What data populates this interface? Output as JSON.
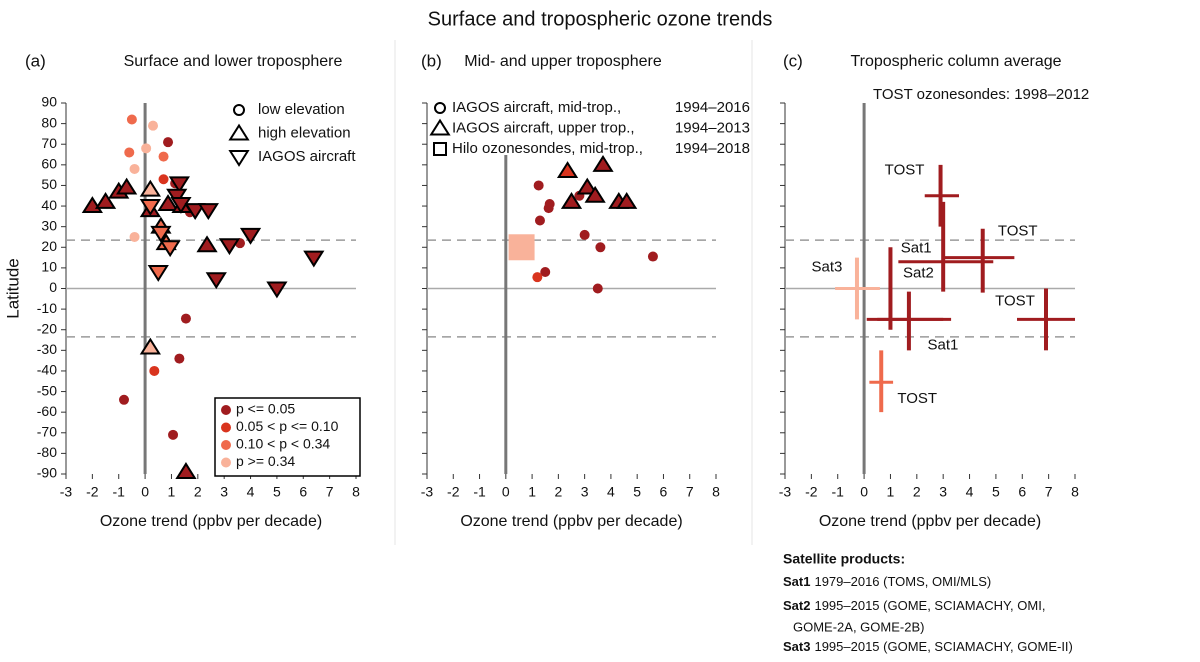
{
  "title": "Surface and tropospheric ozone trends",
  "chart_data": [
    {
      "type": "scatter",
      "panel_label": "(a)",
      "title": "Surface and lower troposphere",
      "xlabel": "Ozone trend (ppbv per decade)",
      "ylabel": "Latitude",
      "xlim": [
        -3,
        8
      ],
      "xticks": [
        -3,
        -2,
        -1,
        0,
        1,
        2,
        3,
        4,
        5,
        6,
        7,
        8
      ],
      "ylim": [
        -90,
        90
      ],
      "yticks": [
        -90,
        -80,
        -70,
        -60,
        -50,
        -40,
        -30,
        -20,
        -10,
        0,
        10,
        20,
        30,
        40,
        50,
        60,
        70,
        80,
        90
      ],
      "show_ytick_labels": true,
      "dashed_hlines": [
        23.5,
        -23.5
      ],
      "hline": 0,
      "vline": 0,
      "marker_legend": [
        {
          "name": "low elevation",
          "marker": "circle"
        },
        {
          "name": "high elevation",
          "marker": "triangle-up"
        },
        {
          "name": "IAGOS aircraft",
          "marker": "triangle-down"
        }
      ],
      "color_legend": [
        {
          "name": "p <= 0.05",
          "color": "#a01c1f"
        },
        {
          "name": "0.05 < p <= 0.10",
          "color": "#d9341e"
        },
        {
          "name": "0.10 < p < 0.34",
          "color": "#ef6a4c"
        },
        {
          "name": "p >= 0.34",
          "color": "#f9b29a"
        }
      ],
      "groups": [
        {
          "marker": "circle",
          "color": "#a01c1f",
          "x": [
            1.14,
            1.7,
            0.87,
            1.55,
            1.3,
            1.06,
            -0.8,
            3.6
          ],
          "y": [
            51,
            37,
            71,
            -14.6,
            -34,
            -71,
            -54,
            22
          ]
        },
        {
          "marker": "circle",
          "color": "#d9341e",
          "x": [
            0.7,
            0.35
          ],
          "y": [
            53,
            -40
          ]
        },
        {
          "marker": "circle",
          "color": "#ef6a4c",
          "x": [
            -0.5,
            -0.6,
            0.7
          ],
          "y": [
            82,
            66,
            64
          ]
        },
        {
          "marker": "circle",
          "color": "#f9b29a",
          "x": [
            0.3,
            0.04,
            -0.4,
            -0.4
          ],
          "y": [
            79,
            68,
            58,
            25
          ]
        },
        {
          "marker": "triangle-up",
          "color": "#a01c1f",
          "x": [
            -2,
            -1.5,
            -1,
            -0.7,
            0.2,
            0.87,
            1.4,
            2.35,
            1.55
          ],
          "y": [
            40,
            42,
            47,
            49,
            38,
            41,
            40,
            21,
            -89
          ]
        },
        {
          "marker": "triangle-up",
          "color": "#ef6a4c",
          "x": [
            0.6,
            0.8
          ],
          "y": [
            30,
            22
          ]
        },
        {
          "marker": "triangle-up",
          "color": "#f9b29a",
          "x": [
            0.2,
            0.2
          ],
          "y": [
            48,
            -28.6
          ]
        },
        {
          "marker": "triangle-down",
          "color": "#a01c1f",
          "x": [
            1.3,
            1.2,
            1.36,
            1.9,
            2.4,
            3.2,
            4,
            2.7,
            5,
            6.4
          ],
          "y": [
            51,
            45,
            41,
            38,
            38,
            21,
            26,
            4.5,
            0,
            15
          ]
        },
        {
          "marker": "triangle-down",
          "color": "#ef6a4c",
          "x": [
            0.6,
            0.5,
            0.95,
            0.2
          ],
          "y": [
            27,
            8,
            20,
            40
          ]
        }
      ]
    },
    {
      "type": "scatter",
      "panel_label": "(b)",
      "title": "Mid- and upper troposphere",
      "xlabel": "Ozone trend (ppbv per decade)",
      "xlim": [
        -3,
        8
      ],
      "xticks": [
        -3,
        -2,
        -1,
        0,
        1,
        2,
        3,
        4,
        5,
        6,
        7,
        8
      ],
      "ylim": [
        -90,
        90
      ],
      "yticks": [
        -90,
        -80,
        -70,
        -60,
        -50,
        -40,
        -30,
        -20,
        -10,
        0,
        10,
        20,
        30,
        40,
        50,
        60,
        70,
        80,
        90
      ],
      "show_ytick_labels": false,
      "dashed_hlines": [
        23.5,
        -23.5
      ],
      "hline": 0,
      "vline": 0,
      "marker_legend": [
        {
          "name": "IAGOS aircraft, mid-trop.,",
          "period": "1994–2016",
          "marker": "circle"
        },
        {
          "name": "IAGOS aircraft, upper trop.,",
          "period": "1994–2013",
          "marker": "triangle-up"
        },
        {
          "name": "Hilo ozonesondes, mid-trop.,",
          "period": "1994–2018",
          "marker": "square"
        }
      ],
      "groups": [
        {
          "marker": "circle",
          "color": "#a01c1f",
          "x": [
            1.25,
            1.67,
            1.63,
            1.3,
            3,
            3.6,
            1.5,
            3.5,
            5.6,
            2.8
          ],
          "y": [
            50,
            41,
            39,
            33,
            26,
            20,
            8,
            0,
            15.5,
            45
          ]
        },
        {
          "marker": "circle",
          "color": "#d9341e",
          "x": [
            1.2
          ],
          "y": [
            5.5
          ]
        },
        {
          "marker": "triangle-up",
          "color": "#d9341e",
          "x": [
            2.35
          ],
          "y": [
            57
          ]
        },
        {
          "marker": "triangle-up",
          "color": "#a01c1f",
          "x": [
            3.7,
            2.5,
            3.1,
            3.4,
            4.3,
            4.6
          ],
          "y": [
            60,
            42,
            49,
            45,
            42,
            42
          ]
        },
        {
          "marker": "square",
          "color": "#f9b29a",
          "x": [
            0.6
          ],
          "y": [
            20
          ]
        }
      ]
    },
    {
      "type": "errorbar",
      "panel_label": "(c)",
      "title": "Tropospheric column average",
      "note": "TOST ozonesondes: 1998–2012",
      "xlabel": "Ozone trend (ppbv per decade)",
      "xlim": [
        -3,
        8
      ],
      "xticks": [
        -3,
        -2,
        -1,
        0,
        1,
        2,
        3,
        4,
        5,
        6,
        7,
        8
      ],
      "ylim": [
        -90,
        90
      ],
      "yticks": [
        -90,
        -80,
        -70,
        -60,
        -50,
        -40,
        -30,
        -20,
        -10,
        0,
        10,
        20,
        30,
        40,
        50,
        60,
        70,
        80,
        90
      ],
      "show_ytick_labels": false,
      "dashed_hlines": [
        23.5,
        -23.5
      ],
      "hline": 0,
      "vline": 0,
      "items": [
        {
          "label": "TOST",
          "color": "#a01c1f",
          "x": 2.9,
          "yrange": [
            30,
            60
          ],
          "y": 45,
          "xrange": [
            2.3,
            3.6
          ]
        },
        {
          "label": "TOST",
          "color": "#a01c1f",
          "x": 4.5,
          "yrange": [
            -2,
            29
          ],
          "y": 15,
          "xrange": [
            3,
            5.7
          ]
        },
        {
          "label": "Sat1",
          "color": "#a01c1f",
          "x": 3.0,
          "yrange": [
            -1.5,
            42
          ],
          "y": 13,
          "xrange": [
            1.3,
            4.9
          ]
        },
        {
          "label": "Sat2",
          "color": "#a01c1f",
          "x": 1.0,
          "yrange": [
            -20,
            20
          ],
          "y": -15,
          "xrange": [
            0.1,
            3.3
          ]
        },
        {
          "label": "Sat1",
          "color": "#a01c1f",
          "x": 1.7,
          "yrange": [
            -30,
            -1.5
          ],
          "y": -15,
          "xrange": [
            0.5,
            3.0
          ]
        },
        {
          "label": "TOST",
          "color": "#a01c1f",
          "x": 6.9,
          "yrange": [
            -30,
            0
          ],
          "y": -15,
          "xrange": [
            5.8,
            8.0
          ]
        },
        {
          "label": "Sat3",
          "color": "#f9b29a",
          "x": -0.27,
          "yrange": [
            -15,
            15
          ],
          "y": 0,
          "xrange": [
            -1.1,
            0.6
          ]
        },
        {
          "label": "TOST",
          "color": "#ef6a4c",
          "x": 0.65,
          "yrange": [
            -60,
            -30
          ],
          "y": -45.5,
          "xrange": [
            0.2,
            1.1
          ]
        }
      ]
    }
  ],
  "footnote": {
    "title": "Satellite products:",
    "items": [
      {
        "name": "Sat1",
        "text": "1979–2016 (TOMS, OMI/MLS)"
      },
      {
        "name": "Sat2",
        "text": "1995–2015 (GOME, SCIAMACHY, OMI,",
        "continuation": "GOME-2A, GOME-2B)"
      },
      {
        "name": "Sat3",
        "text": "1995–2015 (GOME, SCIAMACHY, GOME-II)"
      }
    ]
  }
}
